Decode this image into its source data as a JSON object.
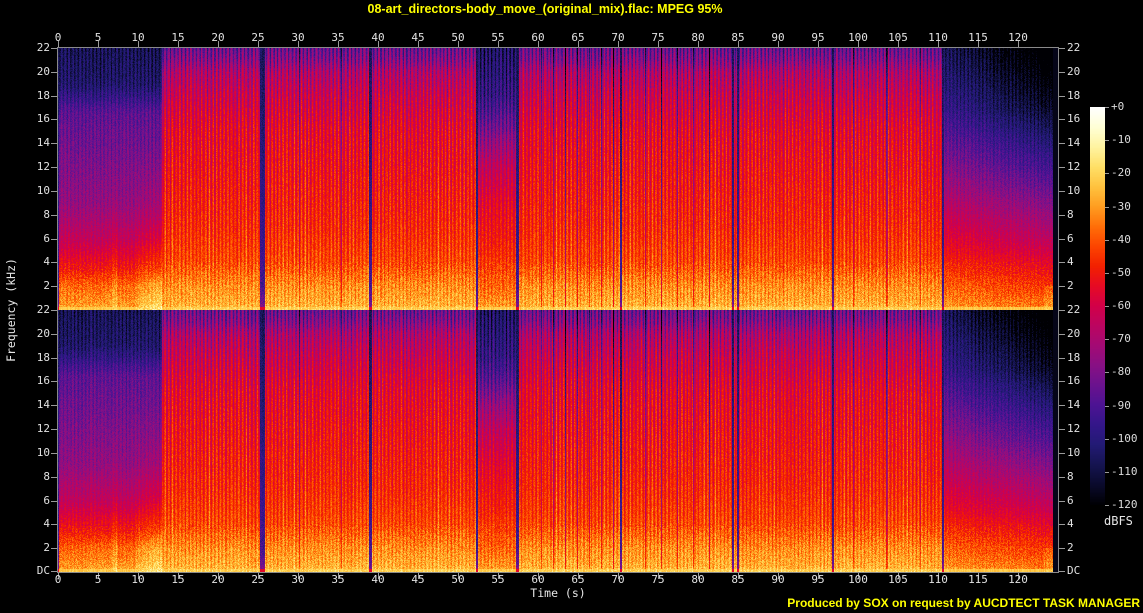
{
  "title": "08-art_directors-body_move_(original_mix).flac: MPEG 95%",
  "footer": "Produced by SOX on request by AUCDTECT TASK MANAGER",
  "accent_color": "#ffff00",
  "axis": {
    "xlabel": "Time (s)",
    "ylabel": "Frequency (kHz)",
    "time_ticks": [
      0,
      5,
      10,
      15,
      20,
      25,
      30,
      35,
      40,
      45,
      50,
      55,
      60,
      65,
      70,
      75,
      80,
      85,
      90,
      95,
      100,
      105,
      110,
      115,
      120
    ],
    "freq_ticks": [
      22,
      20,
      18,
      16,
      14,
      12,
      10,
      8,
      6,
      4,
      2
    ],
    "dc_label": "DC",
    "tick_color": "#9a9a9a",
    "label_color": "#e2e2e2"
  },
  "colorbar": {
    "unit": "dBFS",
    "tick_labels": [
      "+0",
      "-10",
      "-20",
      "-30",
      "-40",
      "-50",
      "-60",
      "-70",
      "-80",
      "-90",
      "-100",
      "-110",
      "-120"
    ],
    "stops": [
      [
        0,
        "#ffffff"
      ],
      [
        -6,
        "#ffffd5"
      ],
      [
        -12,
        "#fff3a0"
      ],
      [
        -18,
        "#ffdf66"
      ],
      [
        -24,
        "#ffc23e"
      ],
      [
        -30,
        "#ff9d20"
      ],
      [
        -36,
        "#ff6e08"
      ],
      [
        -42,
        "#fc4400"
      ],
      [
        -48,
        "#f22000"
      ],
      [
        -54,
        "#e60a24"
      ],
      [
        -60,
        "#d20048"
      ],
      [
        -66,
        "#bb0560"
      ],
      [
        -72,
        "#a30a74"
      ],
      [
        -78,
        "#871084"
      ],
      [
        -84,
        "#6a128e"
      ],
      [
        -90,
        "#4c1393"
      ],
      [
        -96,
        "#331689"
      ],
      [
        -102,
        "#221a74"
      ],
      [
        -108,
        "#151450"
      ],
      [
        -114,
        "#0a0a2c"
      ],
      [
        -120,
        "#000004"
      ]
    ]
  },
  "chart_data": {
    "type": "heatmap",
    "subtype": "stereo_spectrogram",
    "channels": 2,
    "x_range_s": [
      0,
      125
    ],
    "y_range_khz": [
      0,
      22
    ],
    "z_range_dbfs": [
      -120,
      0
    ],
    "pixels_per_second": 8,
    "beat_period_s": 0.4615,
    "segments": [
      {
        "start": 0.0,
        "end": 0.15,
        "kind": "gap"
      },
      {
        "start": 0.15,
        "end": 13.05,
        "kind": "intro"
      },
      {
        "start": 13.05,
        "end": 25.25,
        "kind": "loud"
      },
      {
        "start": 25.25,
        "end": 25.85,
        "kind": "gap"
      },
      {
        "start": 25.85,
        "end": 38.9,
        "kind": "loud"
      },
      {
        "start": 38.9,
        "end": 39.25,
        "kind": "gap"
      },
      {
        "start": 39.25,
        "end": 52.3,
        "kind": "loud"
      },
      {
        "start": 52.3,
        "end": 52.5,
        "kind": "gap"
      },
      {
        "start": 52.5,
        "end": 57.3,
        "kind": "breakdown"
      },
      {
        "start": 57.3,
        "end": 57.6,
        "kind": "gap"
      },
      {
        "start": 57.6,
        "end": 70.3,
        "kind": "loud"
      },
      {
        "start": 70.3,
        "end": 70.55,
        "kind": "gap"
      },
      {
        "start": 70.55,
        "end": 84.2,
        "kind": "loud"
      },
      {
        "start": 84.2,
        "end": 84.45,
        "kind": "gap"
      },
      {
        "start": 84.45,
        "end": 84.85,
        "kind": "loud"
      },
      {
        "start": 84.85,
        "end": 85.1,
        "kind": "gap"
      },
      {
        "start": 85.1,
        "end": 96.7,
        "kind": "loud"
      },
      {
        "start": 96.7,
        "end": 96.95,
        "kind": "gap"
      },
      {
        "start": 96.95,
        "end": 110.45,
        "kind": "loud"
      },
      {
        "start": 110.45,
        "end": 110.7,
        "kind": "gap"
      },
      {
        "start": 110.7,
        "end": 124.35,
        "kind": "outro"
      },
      {
        "start": 124.35,
        "end": 125.0,
        "kind": "silence"
      }
    ],
    "profiles": {
      "intro": [
        [
          0,
          -24
        ],
        [
          0.4,
          -30
        ],
        [
          2,
          -37
        ],
        [
          3.5,
          -50
        ],
        [
          6,
          -64
        ],
        [
          9,
          -75
        ],
        [
          13,
          -81
        ],
        [
          16.5,
          -86
        ],
        [
          18,
          -97
        ],
        [
          19,
          -103
        ],
        [
          22,
          -107
        ]
      ],
      "loud": [
        [
          0,
          -20
        ],
        [
          0.4,
          -26
        ],
        [
          2,
          -31
        ],
        [
          4,
          -41
        ],
        [
          7,
          -46
        ],
        [
          11,
          -50
        ],
        [
          15,
          -54
        ],
        [
          18,
          -61
        ],
        [
          20,
          -68
        ],
        [
          21,
          -77
        ],
        [
          22,
          -83
        ]
      ],
      "breakdown": [
        [
          0,
          -22
        ],
        [
          0.4,
          -30
        ],
        [
          2,
          -37
        ],
        [
          5,
          -47
        ],
        [
          9,
          -55
        ],
        [
          12,
          -64
        ],
        [
          14,
          -74
        ],
        [
          16,
          -86
        ],
        [
          18,
          -96
        ],
        [
          22,
          -104
        ]
      ],
      "outro": [
        [
          0,
          -23
        ],
        [
          0.4,
          -31
        ],
        [
          2,
          -38
        ],
        [
          5,
          -52
        ],
        [
          8,
          -63
        ],
        [
          11,
          -74
        ],
        [
          14,
          -84
        ],
        [
          17,
          -95
        ],
        [
          22,
          -106
        ]
      ],
      "gap": [
        [
          0,
          -70
        ],
        [
          0.5,
          -82
        ],
        [
          2,
          -92
        ],
        [
          22,
          -107
        ]
      ],
      "silence": [
        [
          0,
          -117
        ],
        [
          22,
          -117
        ]
      ],
      "spike": [
        [
          0,
          -18
        ],
        [
          3,
          -27
        ],
        [
          8,
          -34
        ],
        [
          13,
          -39
        ],
        [
          16,
          -45
        ],
        [
          19,
          -62
        ],
        [
          22,
          -80
        ]
      ]
    },
    "stripe_amount": {
      "loud": 1,
      "breakdown": 0.8,
      "intro": 0.5,
      "outro": 0.45,
      "gap": 0.15,
      "silence": 0
    },
    "intro_bursts": [
      {
        "start": 6.6,
        "end": 7.4,
        "max_boost_db": 9,
        "max_khz": 12
      },
      {
        "start": 9.7,
        "end": 13.05,
        "max_boost_db": 13,
        "max_khz": 14
      }
    ],
    "dropouts": [
      [
        30.2,
        18
      ],
      [
        35.45,
        30
      ],
      [
        60.45,
        35
      ],
      [
        61.95,
        35
      ],
      [
        63.45,
        35
      ],
      [
        64.95,
        35
      ],
      [
        66.45,
        35
      ],
      [
        67.95,
        35
      ],
      [
        69.45,
        35
      ],
      [
        73.45,
        35
      ],
      [
        75.45,
        35
      ],
      [
        77.45,
        35
      ],
      [
        79.45,
        35
      ],
      [
        81.45,
        35
      ],
      [
        99.5,
        15
      ],
      [
        103.6,
        25
      ],
      [
        107.8,
        15
      ]
    ]
  }
}
